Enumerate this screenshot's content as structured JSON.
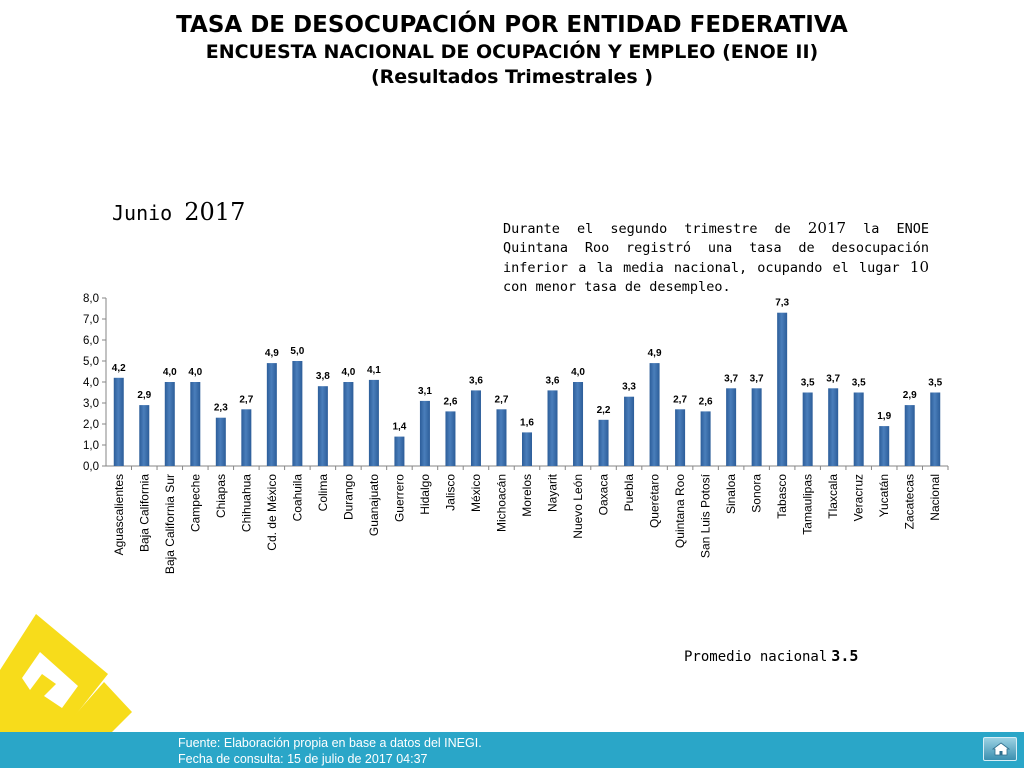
{
  "header": {
    "title": "TASA DE DESOCUPACIÓN POR ENTIDAD FEDERATIVA",
    "subtitle": "ENCUESTA NACIONAL DE OCUPACIÓN Y EMPLEO (ENOE II)",
    "subtitle2": "(Resultados Trimestrales  )"
  },
  "period": {
    "month": "Junio",
    "year": "2017"
  },
  "note": {
    "p1": "Durante el segundo trimestre de ",
    "year": "2017",
    "p2": " la ENOE Quintana Roo registró una tasa de desocupación inferior a la media nacional, ocupando el lugar ",
    "rank": "10",
    "p3": " con menor tasa de desempleo."
  },
  "average": {
    "label": "Promedio nacional",
    "value": "3.5"
  },
  "footer": {
    "source": "Fuente: Elaboración propia en base a datos del INEGI.",
    "date": "Fecha de consulta: 15 de julio de 2017 04:37"
  },
  "colors": {
    "bar": "#4a7ebb",
    "bar_dark": "#2c5d99",
    "footer": "#2aa6c8",
    "logo": "#f7dc1b"
  },
  "icons": {
    "home": "home-icon"
  },
  "chart_data": {
    "type": "bar",
    "categories": [
      "Aguascalientes",
      "Baja California",
      "Baja California Sur",
      "Campeche",
      "Chiapas",
      "Chihuahua",
      "Cd. de México",
      "Coahuila",
      "Colima",
      "Durango",
      "Guanajuato",
      "Guerrero",
      "Hidalgo",
      "Jalisco",
      "México",
      "Michoacán",
      "Morelos",
      "Nayarit",
      "Nuevo León",
      "Oaxaca",
      "Puebla",
      "Querétaro",
      "Quintana Roo",
      "San Luis Potosí",
      "Sinaloa",
      "Sonora",
      "Tabasco",
      "Tamaulipas",
      "Tlaxcala",
      "Veracruz",
      "Yucatán",
      "Zacatecas",
      "Nacional"
    ],
    "values": [
      4.2,
      2.9,
      4.0,
      4.0,
      2.3,
      2.7,
      4.9,
      5.0,
      3.8,
      4.0,
      4.1,
      1.4,
      3.1,
      2.6,
      3.6,
      2.7,
      1.6,
      3.6,
      4.0,
      2.2,
      3.3,
      4.9,
      2.7,
      2.6,
      3.7,
      3.7,
      7.3,
      3.5,
      3.7,
      3.5,
      1.9,
      2.9,
      3.5
    ],
    "value_labels": [
      "4,2",
      "2,9",
      "4,0",
      "4,0",
      "2,3",
      "2,7",
      "4,9",
      "5,0",
      "3,8",
      "4,0",
      "4,1",
      "1,4",
      "3,1",
      "2,6",
      "3,6",
      "2,7",
      "1,6",
      "3,6",
      "4,0",
      "2,2",
      "3,3",
      "4,9",
      "2,7",
      "2,6",
      "3,7",
      "3,7",
      "7,3",
      "3,5",
      "3,7",
      "3,5",
      "1,9",
      "2,9",
      "3,5"
    ],
    "yticks": [
      "0,0",
      "1,0",
      "2,0",
      "3,0",
      "4,0",
      "5,0",
      "6,0",
      "7,0",
      "8,0"
    ],
    "ylim": [
      0,
      8
    ],
    "grid": false,
    "legend": "none"
  }
}
